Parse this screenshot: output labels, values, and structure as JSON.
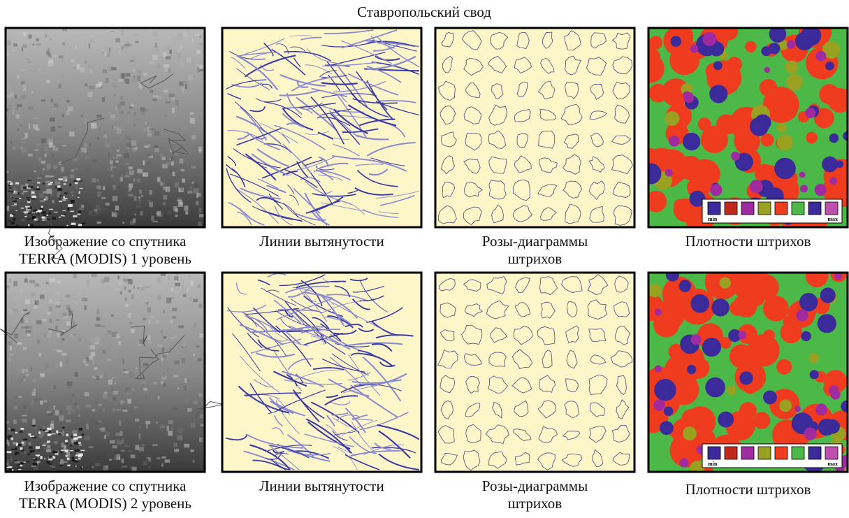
{
  "title": "Ставропольский свод",
  "rows": [
    {
      "captions": [
        [
          "Изображение со спутника",
          "TERRA (MODIS) 1 уровень"
        ],
        [
          "Линии вытянутости"
        ],
        [
          "Розы-диаграммы",
          "штрихов"
        ],
        [
          "Плотности штрихов"
        ]
      ]
    },
    {
      "captions": [
        [
          "Изображение со спутника",
          "TERRA (MODIS) 2 уровень"
        ],
        [
          "Линии вытянутости"
        ],
        [
          "Розы-диаграммы",
          "штрихов"
        ],
        [
          "Плотности штрихов"
        ]
      ]
    }
  ],
  "legend": {
    "min": "min",
    "max": "max"
  }
}
